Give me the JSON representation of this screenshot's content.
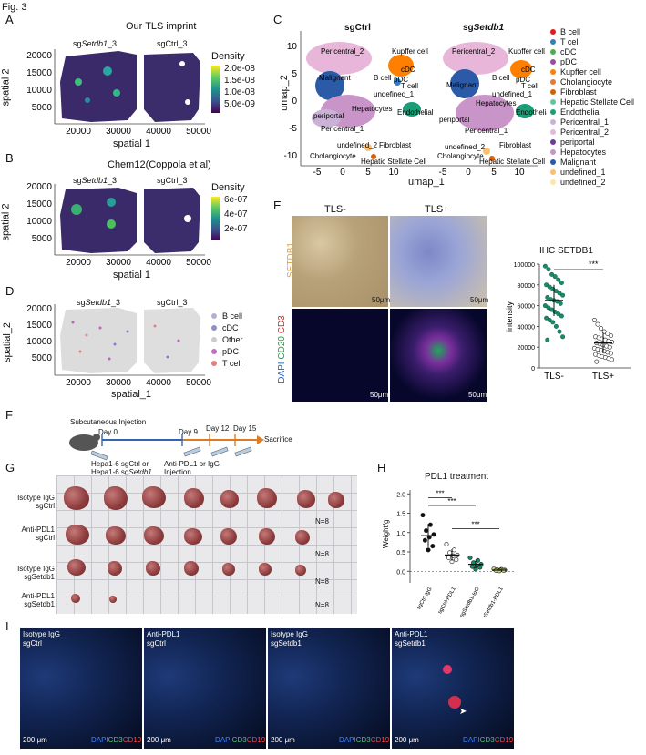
{
  "figure_title": "Fig. 3",
  "panels": {
    "A": {
      "label": "A",
      "title": "Our TLS imprint",
      "sample1_pre": "sg",
      "sample1_gene": "Setdb1",
      "sample1_post": "_3",
      "sample2": "sgCtrl_3",
      "xlabel": "spatial 1",
      "ylabel": "spatial 2",
      "xticks": [
        "20000",
        "30000",
        "40000",
        "50000"
      ],
      "yticks": [
        "20000",
        "15000",
        "10000",
        "5000"
      ],
      "legend_title": "Density",
      "legend_ticks": [
        "2.0e-08",
        "1.5e-08",
        "1.0e-08",
        "5.0e-09"
      ]
    },
    "B": {
      "label": "B",
      "title": "Chem12(Coppola et al)",
      "sample1_pre": "sg",
      "sample1_gene": "Setdb1",
      "sample1_post": "_3",
      "sample2": "sgCtrl_3",
      "xlabel": "spatial 1",
      "ylabel": "spatial 2",
      "xticks": [
        "20000",
        "30000",
        "40000",
        "50000"
      ],
      "yticks": [
        "20000",
        "15000",
        "10000",
        "5000"
      ],
      "legend_title": "Density",
      "legend_ticks": [
        "6e-07",
        "4e-07",
        "2e-07"
      ]
    },
    "C": {
      "label": "C",
      "title1": "sgCtrl",
      "title2_pre": "sg",
      "title2_gene": "Setdb1",
      "xlabel": "umap_1",
      "ylabel": "umap_2",
      "xticks": [
        "-5",
        "0",
        "5",
        "10"
      ],
      "yticks": [
        "10",
        "5",
        "0",
        "-5",
        "-10"
      ],
      "cluster_labels": [
        "Pericentral_2",
        "Kupffer cell",
        "cDC",
        "B cell",
        "pDC",
        "T cell",
        "undefined_1",
        "Malignant",
        "Hepatocytes",
        "Endothelial",
        "periportal",
        "Pericentral_1",
        "undefined_2",
        "Fibroblast",
        "Cholangiocyte",
        "Hepatic Stellate Cell"
      ],
      "legend": [
        {
          "name": "B cell",
          "color": "#e41a1c"
        },
        {
          "name": "T cell",
          "color": "#377eb8"
        },
        {
          "name": "cDC",
          "color": "#4daf4a"
        },
        {
          "name": "pDC",
          "color": "#984ea3"
        },
        {
          "name": "Kupffer cell",
          "color": "#ff7f00"
        },
        {
          "name": "Cholangiocyte",
          "color": "#e07b39"
        },
        {
          "name": "Fibroblast",
          "color": "#d95f02"
        },
        {
          "name": "Hepatic Stellate Cell",
          "color": "#66c2a5"
        },
        {
          "name": "Endothelial",
          "color": "#1b9e77"
        },
        {
          "name": "Pericentral_1",
          "color": "#cab2d6"
        },
        {
          "name": "Pericentral_2",
          "color": "#e7b6d8"
        },
        {
          "name": "periportal",
          "color": "#6a3d9a"
        },
        {
          "name": "Hepatocytes",
          "color": "#c994c7"
        },
        {
          "name": "Malignant",
          "color": "#2b5aa6"
        },
        {
          "name": "undefined_1",
          "color": "#fdbf6f"
        },
        {
          "name": "undefined_2",
          "color": "#ffe5a5"
        }
      ]
    },
    "D": {
      "label": "D",
      "sample1_pre": "sg",
      "sample1_gene": "Setdb1",
      "sample1_post": "_3",
      "sample2": "sgCtrl_3",
      "xlabel": "spatial_1",
      "ylabel": "spatial_2",
      "xticks": [
        "20000",
        "30000",
        "40000",
        "50000"
      ],
      "yticks": [
        "20000",
        "15000",
        "10000",
        "5000"
      ],
      "legend": [
        {
          "name": "B cell",
          "color": "#b0b0d8"
        },
        {
          "name": "cDC",
          "color": "#9090c8"
        },
        {
          "name": "Other",
          "color": "#cccccc"
        },
        {
          "name": "pDC",
          "color": "#c070c0"
        },
        {
          "name": "T cell",
          "color": "#e08080"
        }
      ]
    },
    "E": {
      "label": "E",
      "col1": "TLS-",
      "col2": "TLS+",
      "row1": "SETDB1",
      "row2_dapi": "DAPI",
      "row2_cd20": "CD20",
      "row2_cd3": "CD3",
      "scale": "50μm",
      "plot_title": "IHC SETDB1",
      "ylabel": "intensity",
      "sig": "***"
    },
    "F": {
      "label": "F",
      "subcut": "Subcutaneous Injection",
      "day0": "Day 0",
      "day9": "Day 9",
      "day12": "Day 12",
      "day15": "Day 15",
      "sacrifice": "Sacrifice",
      "hepa_ctrl": "Hepa1-6 sgCtrl or",
      "hepa_setdb1_pre": "Hepa1-6 sg",
      "hepa_setdb1_gene": "Setdb1",
      "antipdl1_line1": "Anti-PDL1 or IgG",
      "antipdl1_line2": "Injection"
    },
    "G": {
      "label": "G",
      "rows": [
        {
          "l1": "Isotype IgG",
          "l2": "sgCtrl",
          "n": ""
        },
        {
          "l1": "Anti-PDL1",
          "l2": "sgCtrl",
          "n": "N=8"
        },
        {
          "l1": "Isotype IgG",
          "l2": "sgSetdb1",
          "n": "N=8"
        },
        {
          "l1": "Anti-PDL1",
          "l2": "sgSetdb1",
          "n": "N=8"
        }
      ],
      "row1_n": "N=8"
    },
    "H": {
      "label": "H",
      "title": "PDL1 treatment",
      "ylabel": "Weight/g",
      "xcats": [
        "sgCtrl-IgG",
        "sgCtrl-PDL1",
        "sgSetdb1-IgG",
        "sgSetdb1-PDL1"
      ],
      "yticks": [
        "2.0",
        "1.5",
        "1.0",
        "0.5",
        "0.0"
      ],
      "sig": "***"
    },
    "I": {
      "label": "I",
      "images": [
        {
          "l1": "Isotype IgG",
          "l2": "sgCtrl"
        },
        {
          "l1": "Anti-PDL1",
          "l2": "sgCtrl"
        },
        {
          "l1": "Isotype IgG",
          "l2": "sgSetdb1"
        },
        {
          "l1": "Anti-PDL1",
          "l2": "sgSetdb1"
        }
      ],
      "scale": "200 μm",
      "dapi": "DAPI",
      "cd3": "CD3",
      "cd19": "CD19"
    }
  },
  "chart_data": [
    {
      "type": "scatter",
      "panel": "E",
      "title": "IHC SETDB1",
      "ylabel": "intensity",
      "categories": [
        "TLS-",
        "TLS+"
      ],
      "ylim": [
        0,
        100000
      ],
      "yticks": [
        0,
        20000,
        40000,
        60000,
        80000,
        100000
      ],
      "series": [
        {
          "name": "TLS-",
          "mean": 65000,
          "sd": 15000,
          "values": [
            98000,
            95000,
            90000,
            88000,
            85000,
            82000,
            80000,
            78000,
            76000,
            74000,
            72000,
            70000,
            68000,
            66000,
            65000,
            64000,
            62000,
            60000,
            58000,
            56000,
            54000,
            52000,
            50000,
            48000,
            46000,
            44000,
            40000,
            35000,
            30000,
            27000
          ]
        },
        {
          "name": "TLS+",
          "mean": 24000,
          "sd": 10000,
          "values": [
            46000,
            42000,
            38000,
            35000,
            33000,
            31000,
            30000,
            29000,
            28000,
            27000,
            26000,
            25000,
            24000,
            23000,
            22000,
            21000,
            20000,
            19000,
            18000,
            17000,
            16000,
            15000,
            14000,
            13000,
            12000,
            11000,
            10000,
            9000,
            8000,
            6000
          ]
        }
      ]
    },
    {
      "type": "scatter",
      "panel": "H",
      "title": "PDL1 treatment",
      "ylabel": "Weight/g",
      "categories": [
        "sgCtrl-IgG",
        "sgCtrl-PDL1",
        "sgSetdb1-IgG",
        "sgSetdb1-PDL1"
      ],
      "ylim": [
        -0.3,
        2.1
      ],
      "yticks": [
        0.0,
        0.5,
        1.0,
        1.5,
        2.0
      ],
      "series": [
        {
          "name": "sgCtrl-IgG",
          "mean": 0.92,
          "sd": 0.3,
          "values": [
            1.45,
            1.2,
            1.05,
            0.95,
            0.88,
            0.8,
            0.65,
            0.55
          ]
        },
        {
          "name": "sgCtrl-PDL1",
          "mean": 0.42,
          "sd": 0.15,
          "values": [
            0.7,
            0.55,
            0.48,
            0.42,
            0.4,
            0.35,
            0.3,
            0.25
          ]
        },
        {
          "name": "sgSetdb1-IgG",
          "mean": 0.18,
          "sd": 0.1,
          "values": [
            0.35,
            0.28,
            0.22,
            0.18,
            0.15,
            0.12,
            0.1,
            0.05
          ]
        },
        {
          "name": "sgSetdb1-PDL1",
          "mean": 0.03,
          "sd": 0.02,
          "values": [
            0.06,
            0.05,
            0.04,
            0.03,
            0.03,
            0.02,
            0.02,
            0.01
          ]
        }
      ]
    }
  ]
}
